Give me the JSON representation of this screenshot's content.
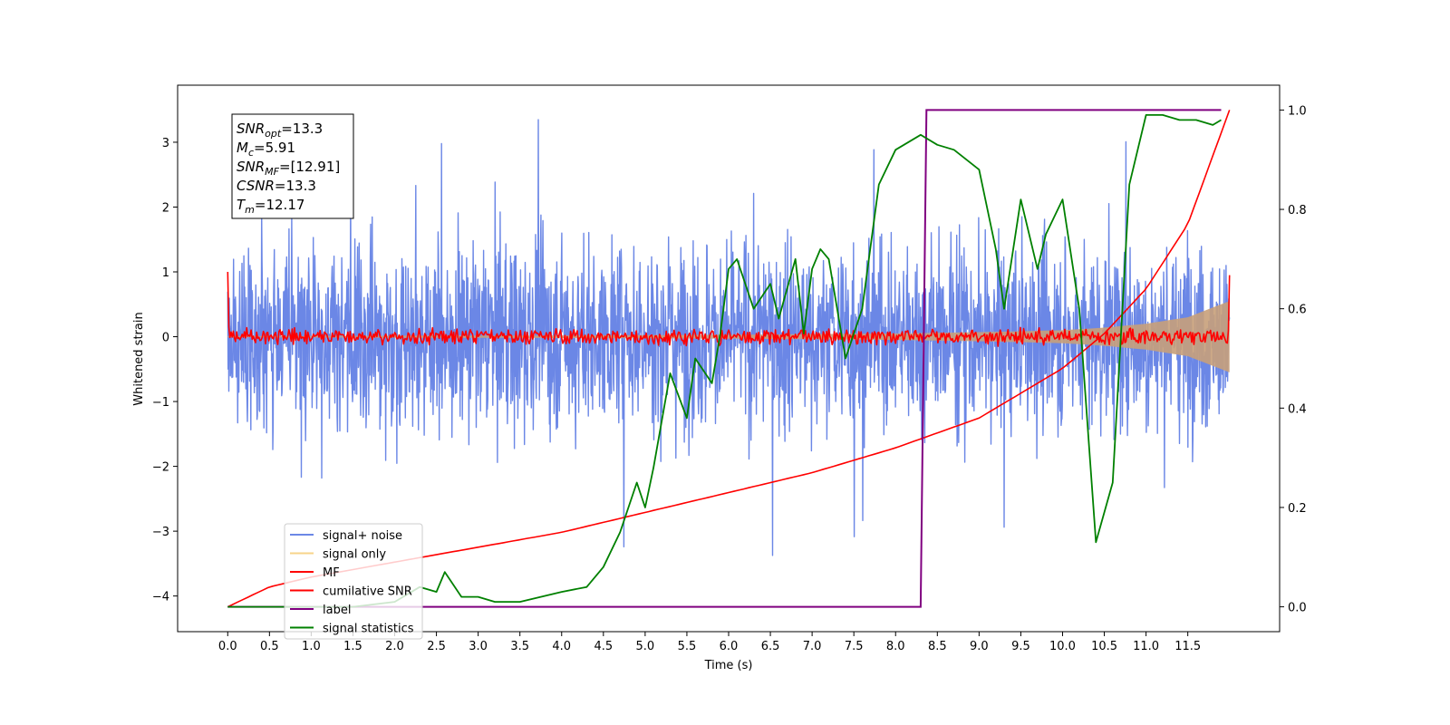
{
  "chart_data": {
    "type": "line",
    "xlabel": "Time (s)",
    "ylabel": "Whitened strain",
    "xlim": [
      -0.6,
      12.6
    ],
    "ylim": [
      -4.55,
      3.88
    ],
    "y2lim": [
      -0.05,
      1.05
    ],
    "x_ticks": [
      "0.0",
      "0.5",
      "1.0",
      "1.5",
      "2.0",
      "2.5",
      "3.0",
      "3.5",
      "4.0",
      "4.5",
      "5.0",
      "5.5",
      "6.0",
      "6.5",
      "7.0",
      "7.5",
      "8.0",
      "8.5",
      "9.0",
      "9.5",
      "10.0",
      "10.5",
      "11.0",
      "11.5"
    ],
    "y_ticks": [
      "3",
      "2",
      "1",
      "0",
      "−1",
      "−2",
      "−3",
      "−4"
    ],
    "y2_ticks": [
      "1.0",
      "0.8",
      "0.6",
      "0.4",
      "0.2",
      "0.0"
    ],
    "grid": false,
    "legend_position": "lower-left",
    "annotation_lines": [
      {
        "var": "SNR",
        "sub": "opt",
        "value": "=13.3"
      },
      {
        "var": "M",
        "sub": "c",
        "value": "=5.91"
      },
      {
        "var": "SNR",
        "sub": "MF",
        "value": "=[12.91]"
      },
      {
        "var": "CSNR",
        "sub": "",
        "value": "=13.3"
      },
      {
        "var": "T",
        "sub": "m",
        "value": "=12.17"
      }
    ],
    "series": [
      {
        "name": "signal+ noise",
        "color": "#6b87e6",
        "axis": "left",
        "noise_band": {
          "x": [
            0.0,
            12.0
          ],
          "typical_range": [
            -1.5,
            1.6
          ],
          "extremes": [
            -4.15,
            3.5
          ]
        }
      },
      {
        "name": "signal only",
        "color": "#f7d48a",
        "axis": "left",
        "envelope": {
          "x": [
            0.0,
            2.0,
            4.0,
            6.0,
            8.0,
            9.0,
            10.0,
            10.5,
            11.0,
            11.5,
            12.0
          ],
          "amplitude": [
            0.01,
            0.015,
            0.02,
            0.03,
            0.05,
            0.07,
            0.1,
            0.14,
            0.2,
            0.3,
            0.55
          ]
        }
      },
      {
        "name": "MF",
        "color": "#ff0000",
        "axis": "left",
        "values_summary": {
          "x": [
            0.0,
            12.0
          ],
          "start_value": 1.0,
          "typical_range": [
            -0.12,
            0.12
          ],
          "end_value": 0.95
        }
      },
      {
        "name": "cumilative SNR",
        "color": "#ff0000",
        "axis": "right",
        "x": [
          0.0,
          0.5,
          1.0,
          2.0,
          3.0,
          4.0,
          5.0,
          6.0,
          7.0,
          8.0,
          9.0,
          10.0,
          10.5,
          11.0,
          11.5,
          12.0
        ],
        "y": [
          0.0,
          0.04,
          0.06,
          0.09,
          0.12,
          0.15,
          0.19,
          0.23,
          0.27,
          0.32,
          0.38,
          0.48,
          0.55,
          0.64,
          0.77,
          1.0
        ]
      },
      {
        "name": "label",
        "color": "#800080",
        "axis": "right",
        "x": [
          0.0,
          8.3,
          8.37,
          11.9
        ],
        "y": [
          0.0,
          0.0,
          1.0,
          1.0
        ]
      },
      {
        "name": "signal statistics",
        "color": "#008000",
        "axis": "right",
        "x": [
          0.0,
          1.0,
          1.5,
          2.0,
          2.3,
          2.5,
          2.6,
          2.8,
          3.0,
          3.2,
          3.5,
          4.0,
          4.3,
          4.5,
          4.7,
          4.9,
          5.0,
          5.1,
          5.3,
          5.5,
          5.6,
          5.8,
          5.9,
          6.0,
          6.1,
          6.3,
          6.5,
          6.6,
          6.8,
          6.9,
          7.0,
          7.1,
          7.2,
          7.4,
          7.6,
          7.8,
          8.0,
          8.3,
          8.5,
          8.7,
          9.0,
          9.2,
          9.3,
          9.5,
          9.7,
          9.8,
          10.0,
          10.2,
          10.4,
          10.6,
          10.8,
          11.0,
          11.2,
          11.4,
          11.6,
          11.8,
          11.9
        ],
        "y": [
          0.0,
          0.0,
          0.0,
          0.01,
          0.04,
          0.03,
          0.07,
          0.02,
          0.02,
          0.01,
          0.01,
          0.03,
          0.04,
          0.08,
          0.15,
          0.25,
          0.2,
          0.28,
          0.47,
          0.38,
          0.5,
          0.45,
          0.55,
          0.68,
          0.7,
          0.6,
          0.65,
          0.58,
          0.7,
          0.55,
          0.68,
          0.72,
          0.7,
          0.5,
          0.6,
          0.85,
          0.92,
          0.95,
          0.93,
          0.92,
          0.88,
          0.72,
          0.6,
          0.82,
          0.68,
          0.75,
          0.82,
          0.6,
          0.13,
          0.25,
          0.85,
          0.99,
          0.99,
          0.98,
          0.98,
          0.97,
          0.98
        ]
      }
    ]
  }
}
